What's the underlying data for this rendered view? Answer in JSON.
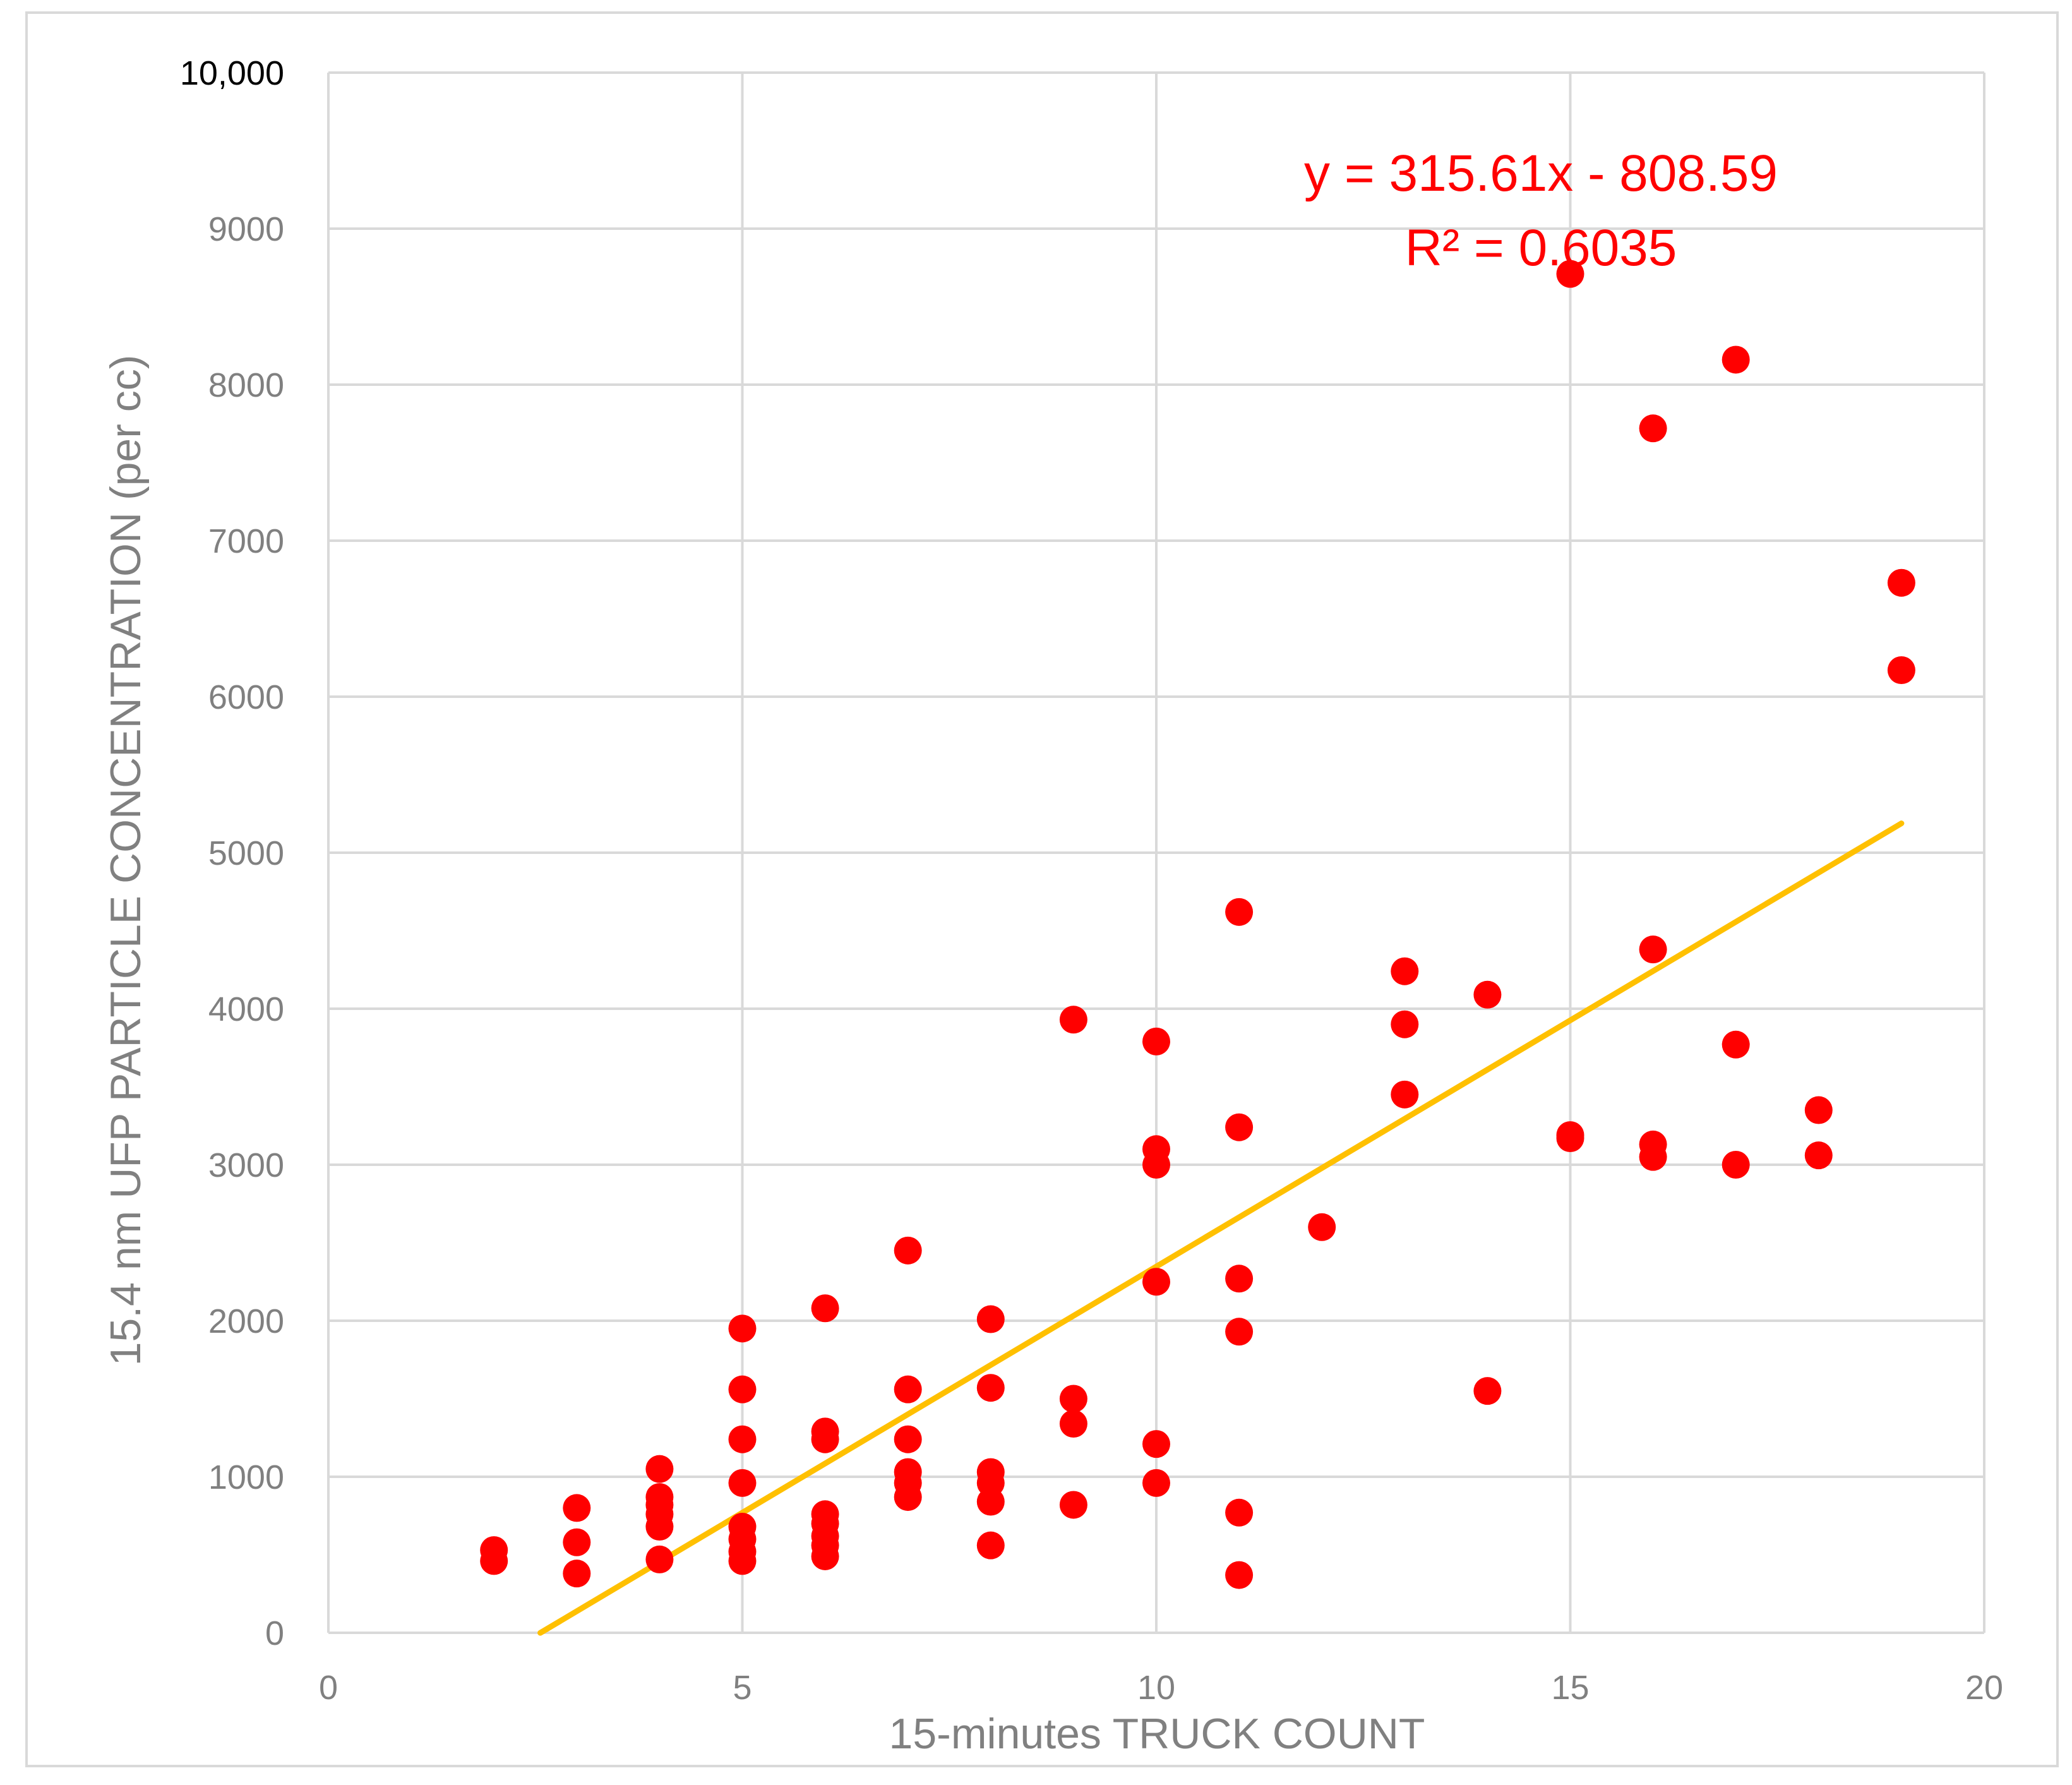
{
  "chart_data": {
    "type": "scatter",
    "xlabel": "15-minutes TRUCK COUNT",
    "ylabel": "15.4 nm UFP PARTICLE CONCENTRATION (per cc)",
    "xlim": [
      0,
      20
    ],
    "ylim": [
      0,
      10000
    ],
    "x_ticks": [
      0,
      5,
      10,
      15,
      20
    ],
    "x_tick_labels": [
      "0",
      "5",
      "10",
      "15",
      "20"
    ],
    "y_ticks": [
      0,
      1000,
      2000,
      3000,
      4000,
      5000,
      6000,
      7000,
      8000,
      9000,
      10000
    ],
    "y_tick_labels": [
      "0",
      "1000",
      "2000",
      "3000",
      "4000",
      "5000",
      "6000",
      "7000",
      "8000",
      "9000",
      "10,000"
    ],
    "grid": true,
    "marker_color": "#ff0000",
    "trendline_color": "#ffc000",
    "points": [
      [
        2,
        530
      ],
      [
        2,
        460
      ],
      [
        3,
        800
      ],
      [
        3,
        580
      ],
      [
        3,
        380
      ],
      [
        4,
        1050
      ],
      [
        4,
        870
      ],
      [
        4,
        820
      ],
      [
        4,
        760
      ],
      [
        4,
        680
      ],
      [
        4,
        470
      ],
      [
        5,
        1950
      ],
      [
        5,
        1560
      ],
      [
        5,
        1240
      ],
      [
        5,
        960
      ],
      [
        5,
        680
      ],
      [
        5,
        600
      ],
      [
        5,
        520
      ],
      [
        5,
        460
      ],
      [
        6,
        2080
      ],
      [
        6,
        1290
      ],
      [
        6,
        1240
      ],
      [
        6,
        760
      ],
      [
        6,
        700
      ],
      [
        6,
        620
      ],
      [
        6,
        560
      ],
      [
        6,
        490
      ],
      [
        7,
        2450
      ],
      [
        7,
        1560
      ],
      [
        7,
        1240
      ],
      [
        7,
        1030
      ],
      [
        7,
        960
      ],
      [
        7,
        870
      ],
      [
        8,
        2010
      ],
      [
        8,
        1570
      ],
      [
        8,
        1030
      ],
      [
        8,
        960
      ],
      [
        8,
        840
      ],
      [
        8,
        560
      ],
      [
        9,
        3930
      ],
      [
        9,
        1500
      ],
      [
        9,
        1340
      ],
      [
        9,
        820
      ],
      [
        10,
        3790
      ],
      [
        10,
        3100
      ],
      [
        10,
        3000
      ],
      [
        10,
        2250
      ],
      [
        10,
        1210
      ],
      [
        10,
        960
      ],
      [
        11,
        4620
      ],
      [
        11,
        3240
      ],
      [
        11,
        2270
      ],
      [
        11,
        1930
      ],
      [
        11,
        770
      ],
      [
        11,
        370
      ],
      [
        12,
        2600
      ],
      [
        13,
        4240
      ],
      [
        13,
        3900
      ],
      [
        13,
        3450
      ],
      [
        14,
        4090
      ],
      [
        14,
        1550
      ],
      [
        15,
        8710
      ],
      [
        15,
        3190
      ],
      [
        15,
        3170
      ],
      [
        16,
        7720
      ],
      [
        16,
        4380
      ],
      [
        16,
        3130
      ],
      [
        16,
        3050
      ],
      [
        17,
        8160
      ],
      [
        17,
        3770
      ],
      [
        17,
        3000
      ],
      [
        18,
        3350
      ],
      [
        18,
        3060
      ],
      [
        19,
        6730
      ],
      [
        19,
        6170
      ]
    ],
    "trendline": {
      "slope": 315.61,
      "intercept": -808.59,
      "x_range": [
        2.56,
        19
      ],
      "equation": "y = 315.61x - 808.59",
      "r_squared_label": "R² = 0.6035"
    }
  }
}
